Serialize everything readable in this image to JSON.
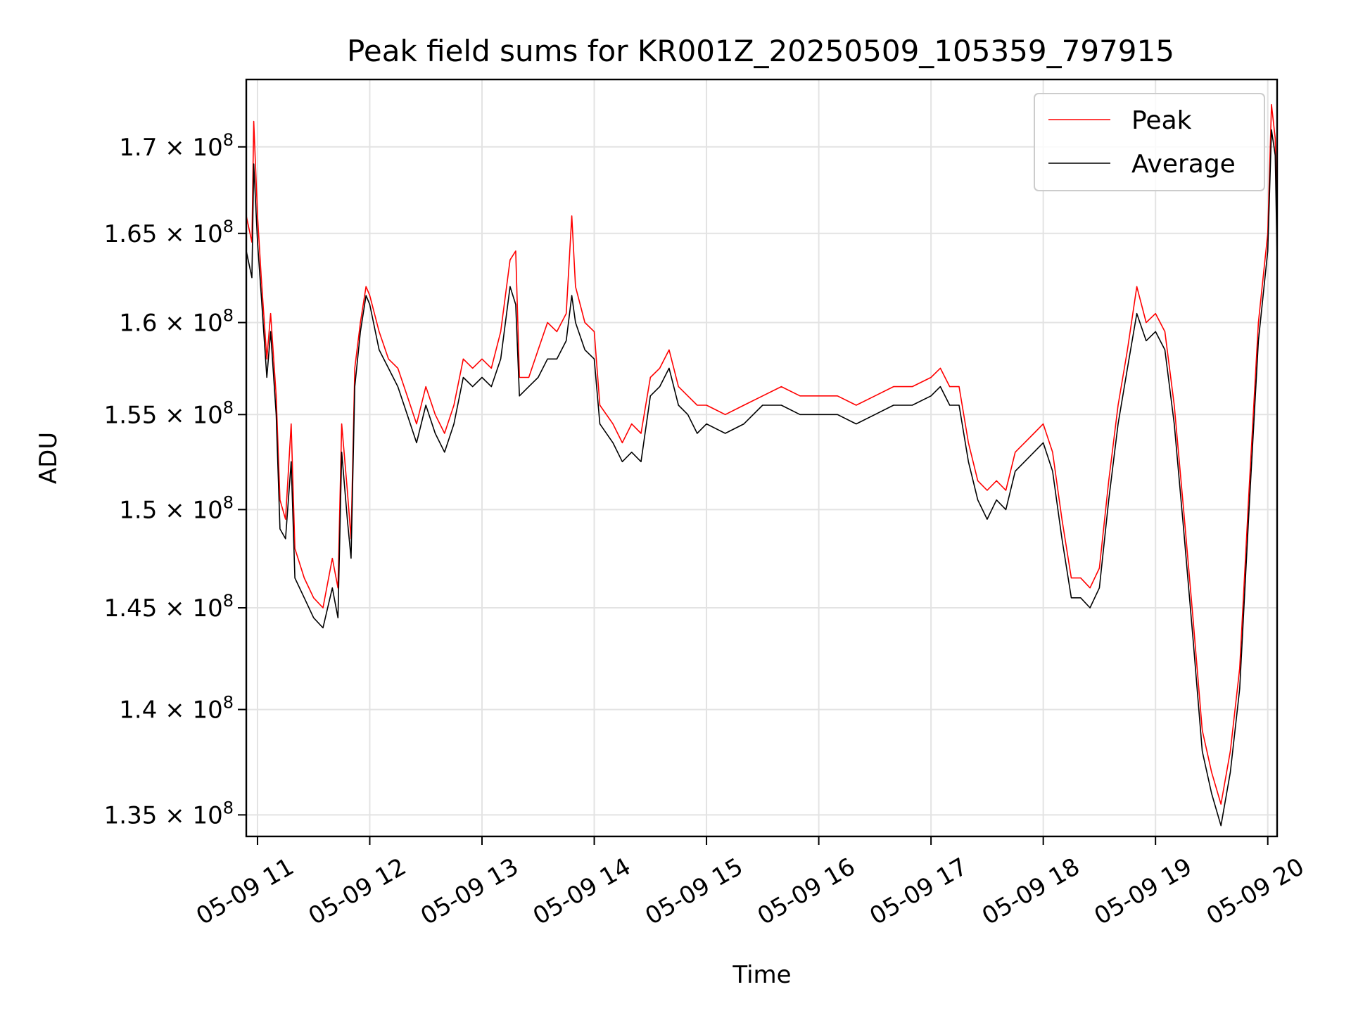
{
  "chart_data": {
    "type": "line",
    "title": "Peak field sums for KR001Z_20250509_105359_797915",
    "xlabel": "Time",
    "ylabel": "ADU",
    "y_scale": "log",
    "xlim": [
      "2025-05-09 10:54",
      "2025-05-09 20:05"
    ],
    "ylim": [
      134000000,
      174000000
    ],
    "grid": true,
    "legend_position": "top-right",
    "x_ticks": [
      {
        "t": "2025-05-09 11:00",
        "label": "05-09 11"
      },
      {
        "t": "2025-05-09 12:00",
        "label": "05-09 12"
      },
      {
        "t": "2025-05-09 13:00",
        "label": "05-09 13"
      },
      {
        "t": "2025-05-09 14:00",
        "label": "05-09 14"
      },
      {
        "t": "2025-05-09 15:00",
        "label": "05-09 15"
      },
      {
        "t": "2025-05-09 16:00",
        "label": "05-09 16"
      },
      {
        "t": "2025-05-09 17:00",
        "label": "05-09 17"
      },
      {
        "t": "2025-05-09 18:00",
        "label": "05-09 18"
      },
      {
        "t": "2025-05-09 19:00",
        "label": "05-09 19"
      },
      {
        "t": "2025-05-09 20:00",
        "label": "05-09 20"
      }
    ],
    "y_ticks": [
      {
        "v": 135000000,
        "mant": "1.35"
      },
      {
        "v": 140000000,
        "mant": "1.4"
      },
      {
        "v": 145000000,
        "mant": "1.45"
      },
      {
        "v": 150000000,
        "mant": "1.5"
      },
      {
        "v": 155000000,
        "mant": "1.55"
      },
      {
        "v": 160000000,
        "mant": "1.6"
      },
      {
        "v": 165000000,
        "mant": "1.65"
      },
      {
        "v": 170000000,
        "mant": "1.7"
      }
    ],
    "y_tick_suffix": "× 10",
    "y_tick_exponent": "8",
    "series": [
      {
        "name": "Peak",
        "color": "#ff0000",
        "points": [
          [
            "2025-05-09 10:54",
            166000000
          ],
          [
            "2025-05-09 10:57",
            164500000
          ],
          [
            "2025-05-09 10:58",
            171500000
          ],
          [
            "2025-05-09 11:00",
            166000000
          ],
          [
            "2025-05-09 11:02",
            162500000
          ],
          [
            "2025-05-09 11:05",
            158000000
          ],
          [
            "2025-05-09 11:07",
            160500000
          ],
          [
            "2025-05-09 11:10",
            156000000
          ],
          [
            "2025-05-09 11:12",
            150500000
          ],
          [
            "2025-05-09 11:15",
            149500000
          ],
          [
            "2025-05-09 11:18",
            154500000
          ],
          [
            "2025-05-09 11:20",
            148000000
          ],
          [
            "2025-05-09 11:25",
            146500000
          ],
          [
            "2025-05-09 11:30",
            145500000
          ],
          [
            "2025-05-09 11:35",
            145000000
          ],
          [
            "2025-05-09 11:40",
            147500000
          ],
          [
            "2025-05-09 11:43",
            146000000
          ],
          [
            "2025-05-09 11:45",
            154500000
          ],
          [
            "2025-05-09 11:48",
            151000000
          ],
          [
            "2025-05-09 11:50",
            148500000
          ],
          [
            "2025-05-09 11:52",
            157500000
          ],
          [
            "2025-05-09 11:55",
            160000000
          ],
          [
            "2025-05-09 11:58",
            162000000
          ],
          [
            "2025-05-09 12:00",
            161500000
          ],
          [
            "2025-05-09 12:05",
            159500000
          ],
          [
            "2025-05-09 12:10",
            158000000
          ],
          [
            "2025-05-09 12:15",
            157500000
          ],
          [
            "2025-05-09 12:20",
            156000000
          ],
          [
            "2025-05-09 12:25",
            154500000
          ],
          [
            "2025-05-09 12:30",
            156500000
          ],
          [
            "2025-05-09 12:35",
            155000000
          ],
          [
            "2025-05-09 12:40",
            154000000
          ],
          [
            "2025-05-09 12:45",
            155500000
          ],
          [
            "2025-05-09 12:50",
            158000000
          ],
          [
            "2025-05-09 12:55",
            157500000
          ],
          [
            "2025-05-09 13:00",
            158000000
          ],
          [
            "2025-05-09 13:05",
            157500000
          ],
          [
            "2025-05-09 13:10",
            159500000
          ],
          [
            "2025-05-09 13:15",
            163500000
          ],
          [
            "2025-05-09 13:18",
            164000000
          ],
          [
            "2025-05-09 13:20",
            157000000
          ],
          [
            "2025-05-09 13:25",
            157000000
          ],
          [
            "2025-05-09 13:30",
            158500000
          ],
          [
            "2025-05-09 13:35",
            160000000
          ],
          [
            "2025-05-09 13:40",
            159500000
          ],
          [
            "2025-05-09 13:45",
            160500000
          ],
          [
            "2025-05-09 13:48",
            166000000
          ],
          [
            "2025-05-09 13:50",
            162000000
          ],
          [
            "2025-05-09 13:55",
            160000000
          ],
          [
            "2025-05-09 14:00",
            159500000
          ],
          [
            "2025-05-09 14:03",
            155500000
          ],
          [
            "2025-05-09 14:10",
            154500000
          ],
          [
            "2025-05-09 14:15",
            153500000
          ],
          [
            "2025-05-09 14:20",
            154500000
          ],
          [
            "2025-05-09 14:25",
            154000000
          ],
          [
            "2025-05-09 14:30",
            157000000
          ],
          [
            "2025-05-09 14:35",
            157500000
          ],
          [
            "2025-05-09 14:40",
            158500000
          ],
          [
            "2025-05-09 14:45",
            156500000
          ],
          [
            "2025-05-09 14:50",
            156000000
          ],
          [
            "2025-05-09 14:55",
            155500000
          ],
          [
            "2025-05-09 15:00",
            155500000
          ],
          [
            "2025-05-09 15:10",
            155000000
          ],
          [
            "2025-05-09 15:20",
            155500000
          ],
          [
            "2025-05-09 15:30",
            156000000
          ],
          [
            "2025-05-09 15:40",
            156500000
          ],
          [
            "2025-05-09 15:50",
            156000000
          ],
          [
            "2025-05-09 16:00",
            156000000
          ],
          [
            "2025-05-09 16:10",
            156000000
          ],
          [
            "2025-05-09 16:20",
            155500000
          ],
          [
            "2025-05-09 16:30",
            156000000
          ],
          [
            "2025-05-09 16:40",
            156500000
          ],
          [
            "2025-05-09 16:50",
            156500000
          ],
          [
            "2025-05-09 17:00",
            157000000
          ],
          [
            "2025-05-09 17:05",
            157500000
          ],
          [
            "2025-05-09 17:10",
            156500000
          ],
          [
            "2025-05-09 17:15",
            156500000
          ],
          [
            "2025-05-09 17:20",
            153500000
          ],
          [
            "2025-05-09 17:25",
            151500000
          ],
          [
            "2025-05-09 17:30",
            151000000
          ],
          [
            "2025-05-09 17:35",
            151500000
          ],
          [
            "2025-05-09 17:40",
            151000000
          ],
          [
            "2025-05-09 17:45",
            153000000
          ],
          [
            "2025-05-09 17:50",
            153500000
          ],
          [
            "2025-05-09 17:55",
            154000000
          ],
          [
            "2025-05-09 18:00",
            154500000
          ],
          [
            "2025-05-09 18:05",
            153000000
          ],
          [
            "2025-05-09 18:10",
            149500000
          ],
          [
            "2025-05-09 18:15",
            146500000
          ],
          [
            "2025-05-09 18:20",
            146500000
          ],
          [
            "2025-05-09 18:25",
            146000000
          ],
          [
            "2025-05-09 18:30",
            147000000
          ],
          [
            "2025-05-09 18:35",
            151500000
          ],
          [
            "2025-05-09 18:40",
            155500000
          ],
          [
            "2025-05-09 18:45",
            158500000
          ],
          [
            "2025-05-09 18:50",
            162000000
          ],
          [
            "2025-05-09 18:55",
            160000000
          ],
          [
            "2025-05-09 19:00",
            160500000
          ],
          [
            "2025-05-09 19:05",
            159500000
          ],
          [
            "2025-05-09 19:10",
            155500000
          ],
          [
            "2025-05-09 19:15",
            150000000
          ],
          [
            "2025-05-09 19:20",
            144500000
          ],
          [
            "2025-05-09 19:25",
            139000000
          ],
          [
            "2025-05-09 19:30",
            137000000
          ],
          [
            "2025-05-09 19:35",
            135500000
          ],
          [
            "2025-05-09 19:40",
            138000000
          ],
          [
            "2025-05-09 19:45",
            142000000
          ],
          [
            "2025-05-09 19:50",
            151000000
          ],
          [
            "2025-05-09 19:55",
            160000000
          ],
          [
            "2025-05-09 20:00",
            165000000
          ],
          [
            "2025-05-09 20:02",
            172500000
          ],
          [
            "2025-05-09 20:04",
            170500000
          ],
          [
            "2025-05-09 20:05",
            165000000
          ]
        ]
      },
      {
        "name": "Average",
        "color": "#000000",
        "points": [
          [
            "2025-05-09 10:54",
            164000000
          ],
          [
            "2025-05-09 10:57",
            162500000
          ],
          [
            "2025-05-09 10:58",
            169000000
          ],
          [
            "2025-05-09 11:00",
            164500000
          ],
          [
            "2025-05-09 11:02",
            161500000
          ],
          [
            "2025-05-09 11:05",
            157000000
          ],
          [
            "2025-05-09 11:07",
            159500000
          ],
          [
            "2025-05-09 11:10",
            155000000
          ],
          [
            "2025-05-09 11:12",
            149000000
          ],
          [
            "2025-05-09 11:15",
            148500000
          ],
          [
            "2025-05-09 11:18",
            152500000
          ],
          [
            "2025-05-09 11:20",
            146500000
          ],
          [
            "2025-05-09 11:25",
            145500000
          ],
          [
            "2025-05-09 11:30",
            144500000
          ],
          [
            "2025-05-09 11:35",
            144000000
          ],
          [
            "2025-05-09 11:40",
            146000000
          ],
          [
            "2025-05-09 11:43",
            144500000
          ],
          [
            "2025-05-09 11:45",
            153000000
          ],
          [
            "2025-05-09 11:48",
            149500000
          ],
          [
            "2025-05-09 11:50",
            147500000
          ],
          [
            "2025-05-09 11:52",
            156500000
          ],
          [
            "2025-05-09 11:55",
            159500000
          ],
          [
            "2025-05-09 11:58",
            161500000
          ],
          [
            "2025-05-09 12:00",
            161000000
          ],
          [
            "2025-05-09 12:05",
            158500000
          ],
          [
            "2025-05-09 12:10",
            157500000
          ],
          [
            "2025-05-09 12:15",
            156500000
          ],
          [
            "2025-05-09 12:20",
            155000000
          ],
          [
            "2025-05-09 12:25",
            153500000
          ],
          [
            "2025-05-09 12:30",
            155500000
          ],
          [
            "2025-05-09 12:35",
            154000000
          ],
          [
            "2025-05-09 12:40",
            153000000
          ],
          [
            "2025-05-09 12:45",
            154500000
          ],
          [
            "2025-05-09 12:50",
            157000000
          ],
          [
            "2025-05-09 12:55",
            156500000
          ],
          [
            "2025-05-09 13:00",
            157000000
          ],
          [
            "2025-05-09 13:05",
            156500000
          ],
          [
            "2025-05-09 13:10",
            158000000
          ],
          [
            "2025-05-09 13:15",
            162000000
          ],
          [
            "2025-05-09 13:18",
            161000000
          ],
          [
            "2025-05-09 13:20",
            156000000
          ],
          [
            "2025-05-09 13:25",
            156500000
          ],
          [
            "2025-05-09 13:30",
            157000000
          ],
          [
            "2025-05-09 13:35",
            158000000
          ],
          [
            "2025-05-09 13:40",
            158000000
          ],
          [
            "2025-05-09 13:45",
            159000000
          ],
          [
            "2025-05-09 13:48",
            161500000
          ],
          [
            "2025-05-09 13:50",
            160000000
          ],
          [
            "2025-05-09 13:55",
            158500000
          ],
          [
            "2025-05-09 14:00",
            158000000
          ],
          [
            "2025-05-09 14:03",
            154500000
          ],
          [
            "2025-05-09 14:10",
            153500000
          ],
          [
            "2025-05-09 14:15",
            152500000
          ],
          [
            "2025-05-09 14:20",
            153000000
          ],
          [
            "2025-05-09 14:25",
            152500000
          ],
          [
            "2025-05-09 14:30",
            156000000
          ],
          [
            "2025-05-09 14:35",
            156500000
          ],
          [
            "2025-05-09 14:40",
            157500000
          ],
          [
            "2025-05-09 14:45",
            155500000
          ],
          [
            "2025-05-09 14:50",
            155000000
          ],
          [
            "2025-05-09 14:55",
            154000000
          ],
          [
            "2025-05-09 15:00",
            154500000
          ],
          [
            "2025-05-09 15:10",
            154000000
          ],
          [
            "2025-05-09 15:20",
            154500000
          ],
          [
            "2025-05-09 15:30",
            155500000
          ],
          [
            "2025-05-09 15:40",
            155500000
          ],
          [
            "2025-05-09 15:50",
            155000000
          ],
          [
            "2025-05-09 16:00",
            155000000
          ],
          [
            "2025-05-09 16:10",
            155000000
          ],
          [
            "2025-05-09 16:20",
            154500000
          ],
          [
            "2025-05-09 16:30",
            155000000
          ],
          [
            "2025-05-09 16:40",
            155500000
          ],
          [
            "2025-05-09 16:50",
            155500000
          ],
          [
            "2025-05-09 17:00",
            156000000
          ],
          [
            "2025-05-09 17:05",
            156500000
          ],
          [
            "2025-05-09 17:10",
            155500000
          ],
          [
            "2025-05-09 17:15",
            155500000
          ],
          [
            "2025-05-09 17:20",
            152500000
          ],
          [
            "2025-05-09 17:25",
            150500000
          ],
          [
            "2025-05-09 17:30",
            149500000
          ],
          [
            "2025-05-09 17:35",
            150500000
          ],
          [
            "2025-05-09 17:40",
            150000000
          ],
          [
            "2025-05-09 17:45",
            152000000
          ],
          [
            "2025-05-09 17:50",
            152500000
          ],
          [
            "2025-05-09 17:55",
            153000000
          ],
          [
            "2025-05-09 18:00",
            153500000
          ],
          [
            "2025-05-09 18:05",
            152000000
          ],
          [
            "2025-05-09 18:10",
            148500000
          ],
          [
            "2025-05-09 18:15",
            145500000
          ],
          [
            "2025-05-09 18:20",
            145500000
          ],
          [
            "2025-05-09 18:25",
            145000000
          ],
          [
            "2025-05-09 18:30",
            146000000
          ],
          [
            "2025-05-09 18:35",
            150500000
          ],
          [
            "2025-05-09 18:40",
            154500000
          ],
          [
            "2025-05-09 18:45",
            157500000
          ],
          [
            "2025-05-09 18:50",
            160500000
          ],
          [
            "2025-05-09 18:55",
            159000000
          ],
          [
            "2025-05-09 19:00",
            159500000
          ],
          [
            "2025-05-09 19:05",
            158500000
          ],
          [
            "2025-05-09 19:10",
            154500000
          ],
          [
            "2025-05-09 19:15",
            149000000
          ],
          [
            "2025-05-09 19:20",
            143500000
          ],
          [
            "2025-05-09 19:25",
            138000000
          ],
          [
            "2025-05-09 19:30",
            136000000
          ],
          [
            "2025-05-09 19:35",
            134500000
          ],
          [
            "2025-05-09 19:40",
            137000000
          ],
          [
            "2025-05-09 19:45",
            141000000
          ],
          [
            "2025-05-09 19:50",
            150000000
          ],
          [
            "2025-05-09 19:55",
            159000000
          ],
          [
            "2025-05-09 20:00",
            164000000
          ],
          [
            "2025-05-09 20:02",
            171000000
          ],
          [
            "2025-05-09 20:04",
            169500000
          ],
          [
            "2025-05-09 20:05",
            163500000
          ]
        ]
      }
    ]
  }
}
